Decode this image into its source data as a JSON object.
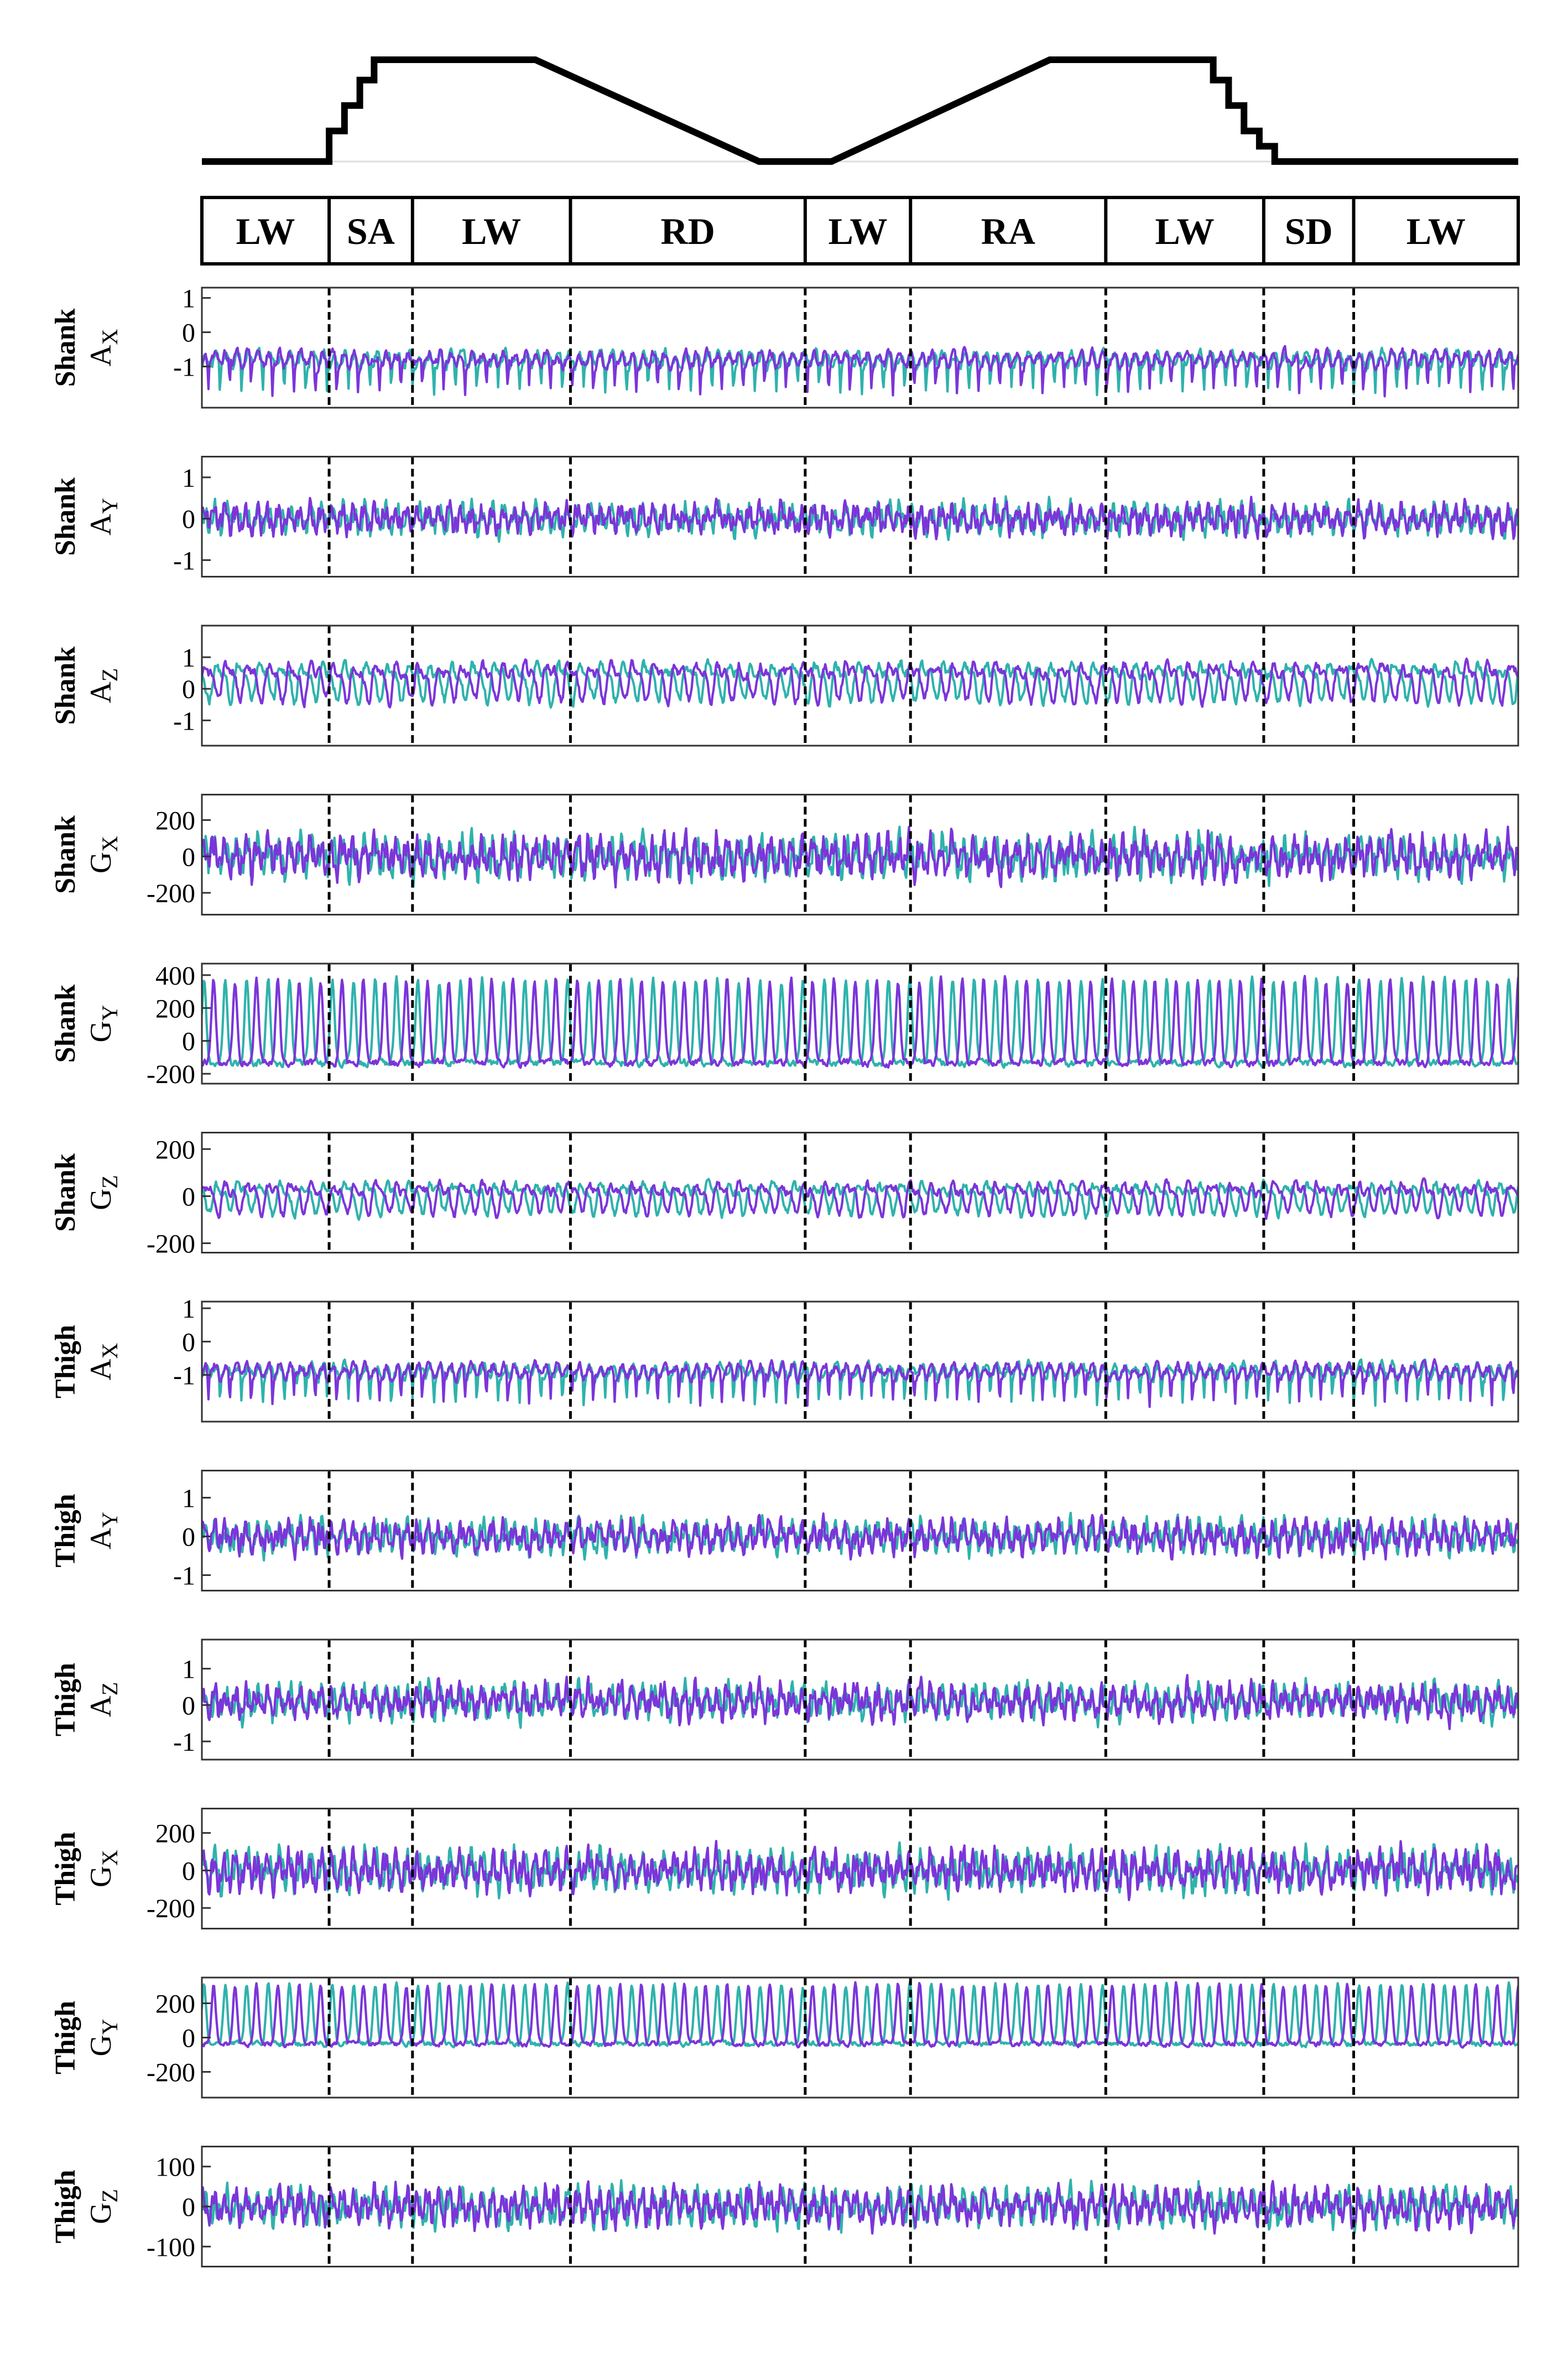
{
  "colors": {
    "left_leg": "#7B35D9",
    "right_leg": "#2FB2AC",
    "terrain": "#000000",
    "divider": "#000000"
  },
  "terrain_profile": {
    "points": [
      [
        0,
        0
      ],
      [
        11.6,
        0
      ],
      [
        11.6,
        0.3
      ],
      [
        13.0,
        0.3
      ],
      [
        13.0,
        0.55
      ],
      [
        14.4,
        0.55
      ],
      [
        14.4,
        0.8
      ],
      [
        15.7,
        0.8
      ],
      [
        15.7,
        1.0
      ],
      [
        30.4,
        1.0
      ],
      [
        50.8,
        0
      ],
      [
        57.4,
        0
      ],
      [
        77.3,
        1.0
      ],
      [
        92.2,
        1.0
      ],
      [
        92.2,
        0.8
      ],
      [
        93.6,
        0.8
      ],
      [
        93.6,
        0.55
      ],
      [
        95.0,
        0.55
      ],
      [
        95.0,
        0.3
      ],
      [
        96.4,
        0.3
      ],
      [
        96.4,
        0.15
      ],
      [
        97.8,
        0.15
      ],
      [
        97.8,
        0
      ],
      [
        120,
        0
      ]
    ],
    "x_range": [
      0,
      120
    ],
    "y_range": [
      0,
      1
    ]
  },
  "activities": [
    {
      "label": "LW",
      "start": 0,
      "end": 11.6
    },
    {
      "label": "SA",
      "start": 11.6,
      "end": 19.2
    },
    {
      "label": "LW",
      "start": 19.2,
      "end": 33.6
    },
    {
      "label": "RD",
      "start": 33.6,
      "end": 55.0
    },
    {
      "label": "LW",
      "start": 55.0,
      "end": 64.6
    },
    {
      "label": "RA",
      "start": 64.6,
      "end": 82.4
    },
    {
      "label": "LW",
      "start": 82.4,
      "end": 96.8
    },
    {
      "label": "SD",
      "start": 96.8,
      "end": 105.0
    },
    {
      "label": "LW",
      "start": 105.0,
      "end": 120
    }
  ],
  "transitions": [
    11.6,
    19.2,
    33.6,
    55.0,
    64.6,
    82.4,
    96.8,
    105.0
  ],
  "chart_data": [
    {
      "type": "line",
      "label": [
        "Shank",
        "A",
        "X"
      ],
      "ylim": [
        -2.2,
        1.3
      ],
      "yticks": [
        1,
        0,
        -1
      ],
      "x_range": [
        0,
        120
      ],
      "generator": {
        "base": -0.8,
        "amp": 0.5,
        "shape": "spikeDown",
        "seed": 11
      }
    },
    {
      "type": "line",
      "label": [
        "Shank",
        "A",
        "Y"
      ],
      "ylim": [
        -1.4,
        1.5
      ],
      "yticks": [
        1,
        0,
        -1
      ],
      "x_range": [
        0,
        120
      ],
      "generator": {
        "base": 0,
        "amp": 0.35,
        "shape": "noise",
        "seed": 12
      }
    },
    {
      "type": "line",
      "label": [
        "Shank",
        "A",
        "Z"
      ],
      "ylim": [
        -1.8,
        2.0
      ],
      "yticks": [
        1,
        0,
        -1
      ],
      "x_range": [
        0,
        120
      ],
      "generator": {
        "base": 0.3,
        "amp": 0.5,
        "shape": "wave",
        "seed": 13
      }
    },
    {
      "type": "line",
      "label": [
        "Shank",
        "G",
        "X"
      ],
      "ylim": [
        -320,
        340
      ],
      "yticks": [
        200,
        0,
        -200
      ],
      "x_range": [
        0,
        120
      ],
      "generator": {
        "base": 0,
        "amp": 110,
        "shape": "noise",
        "seed": 14
      }
    },
    {
      "type": "line",
      "label": [
        "Shank",
        "G",
        "Y"
      ],
      "ylim": [
        -260,
        470
      ],
      "yticks": [
        400,
        200,
        0,
        -200
      ],
      "x_range": [
        0,
        120
      ],
      "generator": {
        "base": -80,
        "amp": 220,
        "shape": "gait",
        "seed": 15
      }
    },
    {
      "type": "line",
      "label": [
        "Shank",
        "G",
        "Z"
      ],
      "ylim": [
        -240,
        270
      ],
      "yticks": [
        200,
        0,
        -200
      ],
      "x_range": [
        0,
        120
      ],
      "generator": {
        "base": 0,
        "amp": 55,
        "shape": "wave",
        "seed": 16
      }
    },
    {
      "type": "line",
      "label": [
        "Thigh",
        "A",
        "X"
      ],
      "ylim": [
        -2.4,
        1.2
      ],
      "yticks": [
        1,
        0,
        -1
      ],
      "x_range": [
        0,
        120
      ],
      "generator": {
        "base": -0.9,
        "amp": 0.5,
        "shape": "spikeDown",
        "seed": 17
      }
    },
    {
      "type": "line",
      "label": [
        "Thigh",
        "A",
        "Y"
      ],
      "ylim": [
        -1.4,
        1.7
      ],
      "yticks": [
        1,
        0,
        -1
      ],
      "x_range": [
        0,
        120
      ],
      "generator": {
        "base": 0,
        "amp": 0.4,
        "shape": "noise",
        "seed": 18
      }
    },
    {
      "type": "line",
      "label": [
        "Thigh",
        "A",
        "Z"
      ],
      "ylim": [
        -1.5,
        1.8
      ],
      "yticks": [
        1,
        0,
        -1
      ],
      "x_range": [
        0,
        120
      ],
      "generator": {
        "base": 0.1,
        "amp": 0.45,
        "shape": "noise",
        "seed": 19
      }
    },
    {
      "type": "line",
      "label": [
        "Thigh",
        "G",
        "X"
      ],
      "ylim": [
        -310,
        330
      ],
      "yticks": [
        200,
        0,
        -200
      ],
      "x_range": [
        0,
        120
      ],
      "generator": {
        "base": 0,
        "amp": 100,
        "shape": "noise",
        "seed": 20
      }
    },
    {
      "type": "line",
      "label": [
        "Thigh",
        "G",
        "Y"
      ],
      "ylim": [
        -350,
        350
      ],
      "yticks": [
        200,
        0,
        -200
      ],
      "x_range": [
        0,
        120
      ],
      "generator": {
        "base": 0,
        "amp": 150,
        "shape": "gait",
        "seed": 21
      }
    },
    {
      "type": "line",
      "label": [
        "Thigh",
        "G",
        "Z"
      ],
      "ylim": [
        -150,
        150
      ],
      "yticks": [
        100,
        0,
        -100
      ],
      "x_range": [
        0,
        120
      ],
      "generator": {
        "base": 0,
        "amp": 45,
        "shape": "noise",
        "seed": 22
      }
    }
  ]
}
